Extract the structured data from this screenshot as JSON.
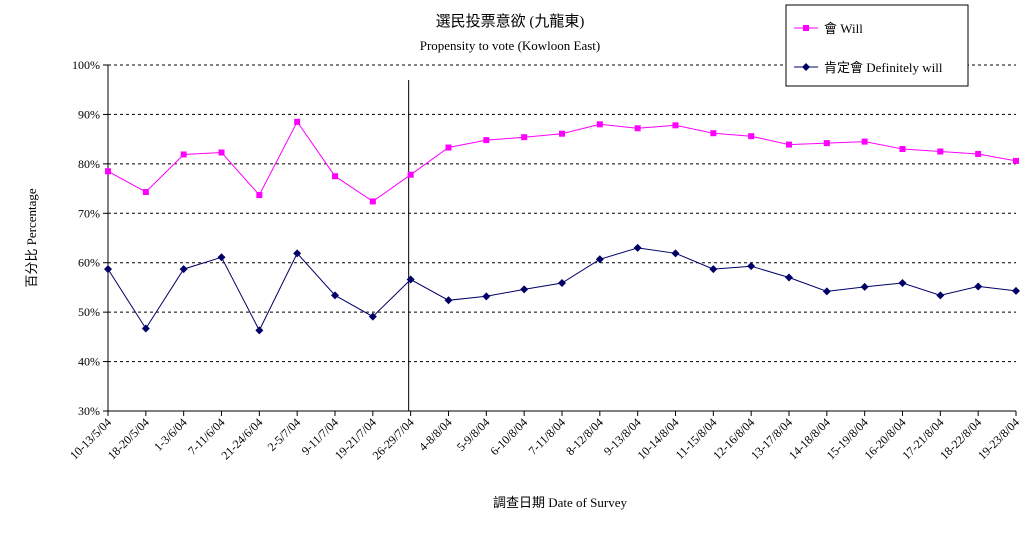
{
  "chart_data": {
    "type": "line",
    "title": "選民投票意欲 (九龍東)",
    "subtitle": "Propensity to vote (Kowloon East)",
    "xlabel": "調查日期 Date of Survey",
    "ylabel": "百分比 Percentage",
    "ylim": [
      30,
      100
    ],
    "yticks": [
      "30%",
      "40%",
      "50%",
      "60%",
      "70%",
      "80%",
      "90%",
      "100%"
    ],
    "grid": "horizontal-dashed",
    "legend_position": "top-right",
    "marker_line_after": "26-29/7/04",
    "categories": [
      "10-13/5/04",
      "18-20/5/04",
      "1-3/6/04",
      "7-11/6/04",
      "21-24/6/04",
      "2-5/7/04",
      "9-11/7/04",
      "19-21/7/04",
      "26-29/7/04",
      "4-8/8/04",
      "5-9/8/04",
      "6-10/8/04",
      "7-11/8/04",
      "8-12/8/04",
      "9-13/8/04",
      "10-14/8/04",
      "11-15/8/04",
      "12-16/8/04",
      "13-17/8/04",
      "14-18/8/04",
      "15-19/8/04",
      "16-20/8/04",
      "17-21/8/04",
      "18-22/8/04",
      "19-23/8/04"
    ],
    "series": [
      {
        "name": "會 Will",
        "color": "#ff00ff",
        "marker": "square",
        "values": [
          78.5,
          74.3,
          81.9,
          82.3,
          73.7,
          88.5,
          77.5,
          72.4,
          77.8,
          83.3,
          84.8,
          85.4,
          86.1,
          88.0,
          87.2,
          87.8,
          86.2,
          85.6,
          83.9,
          84.2,
          84.5,
          83.0,
          82.5,
          82.0,
          80.6
        ]
      },
      {
        "name": "肯定會 Definitely will",
        "color": "#000066",
        "marker": "diamond",
        "values": [
          58.7,
          46.7,
          58.7,
          61.1,
          46.3,
          61.9,
          53.4,
          49.1,
          56.6,
          52.4,
          53.2,
          54.6,
          55.9,
          60.7,
          63.0,
          61.9,
          58.7,
          59.3,
          57.0,
          54.2,
          55.1,
          55.9,
          53.4,
          55.2,
          54.3
        ]
      }
    ]
  }
}
